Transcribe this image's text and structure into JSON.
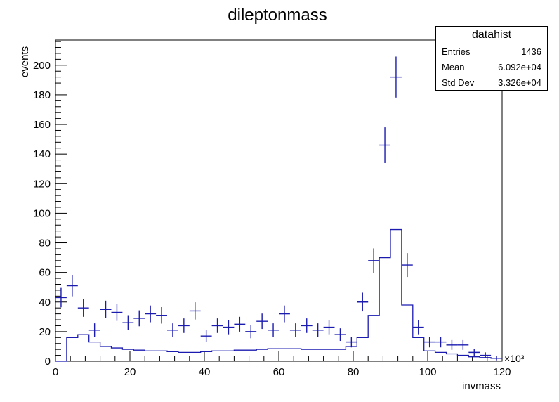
{
  "chart_data": {
    "type": "histogram",
    "title": "dileptonmass",
    "xlabel": "invmass",
    "ylabel": "events",
    "x_multiplier": "×10³",
    "xlim": [
      0,
      120
    ],
    "ylim": [
      0,
      217
    ],
    "x_ticks": [
      0,
      20,
      40,
      60,
      80,
      100,
      120
    ],
    "y_ticks": [
      0,
      20,
      40,
      60,
      80,
      100,
      120,
      140,
      160,
      180,
      200
    ],
    "grid": false,
    "legend": "top-right",
    "bin_width": 3,
    "series": [
      {
        "kind": "errorbar",
        "color": "#1b1bb0",
        "x": [
          1.5,
          4.5,
          7.5,
          10.5,
          13.5,
          16.5,
          19.5,
          22.5,
          25.5,
          28.5,
          31.5,
          34.5,
          37.5,
          40.5,
          43.5,
          46.5,
          49.5,
          52.5,
          55.5,
          58.5,
          61.5,
          64.5,
          67.5,
          70.5,
          73.5,
          76.5,
          79.5,
          82.5,
          85.5,
          88.5,
          91.5,
          94.5,
          97.5,
          100.5,
          103.5,
          106.5,
          109.5,
          112.5,
          115.5,
          118.5
        ],
        "y": [
          43,
          51,
          36,
          21,
          35,
          33,
          26,
          29,
          32,
          31,
          21,
          24,
          34,
          17,
          24,
          23,
          25,
          20,
          27,
          21,
          32,
          21,
          24,
          21,
          23,
          18,
          13,
          40,
          68,
          146,
          192,
          65,
          23,
          13,
          13,
          11,
          11,
          6,
          4,
          2
        ]
      },
      {
        "kind": "step",
        "color": "#1b1bb0",
        "x": [
          1.5,
          4.5,
          7.5,
          10.5,
          13.5,
          16.5,
          19.5,
          22.5,
          25.5,
          28.5,
          31.5,
          34.5,
          37.5,
          40.5,
          43.5,
          46.5,
          49.5,
          52.5,
          55.5,
          58.5,
          61.5,
          64.5,
          67.5,
          70.5,
          73.5,
          76.5,
          79.5,
          82.5,
          85.5,
          88.5,
          91.5,
          94.5,
          97.5,
          100.5,
          103.5,
          106.5,
          109.5,
          112.5,
          115.5,
          118.5
        ],
        "y": [
          0,
          16,
          18,
          13,
          10,
          9,
          8,
          7.5,
          7,
          7,
          6.5,
          6,
          6,
          6.5,
          7,
          7,
          7.5,
          7.5,
          8,
          8.5,
          8.5,
          8.5,
          8,
          8,
          8,
          8,
          10,
          16,
          31,
          70,
          89,
          38,
          16,
          7,
          6,
          5,
          4,
          3,
          2.5,
          2
        ]
      }
    ],
    "stats": {
      "name": "datahist",
      "rows": [
        {
          "label": "Entries",
          "value": "1436"
        },
        {
          "label": "Mean",
          "value": "6.092e+04"
        },
        {
          "label": "Std Dev",
          "value": "3.326e+04"
        }
      ]
    }
  }
}
